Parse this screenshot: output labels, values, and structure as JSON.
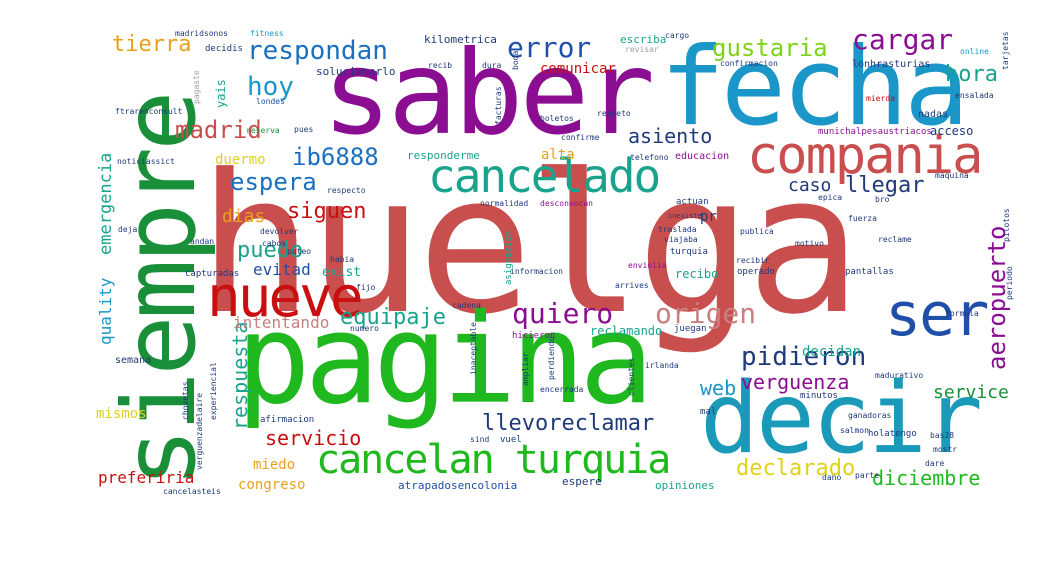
{
  "cloud": {
    "words": {
      "huelga": "huelga",
      "saber": "saber",
      "fecha": "fecha",
      "pagina": "pagina",
      "decir": "decir",
      "siempre": "siempre",
      "compania": "compania",
      "cancelado": "cancelado",
      "nueve": "nueve",
      "ser": "ser",
      "cancelan_turquia": "cancelan turquia",
      "respondan": "respondan",
      "error": "error",
      "cargar": "cargar",
      "gustaria": "gustaria",
      "hora": "hora",
      "tierra": "tierra",
      "hoy": "hoy",
      "madrid": "madrid",
      "espera": "espera",
      "ib6888": "ib6888",
      "asiento": "asiento",
      "siguen": "siguen",
      "puedo": "puedo",
      "dias": "dias",
      "caso": "caso",
      "llegar": "llegar",
      "aeropuerto": "aeropuerto",
      "quiero": "quiero",
      "origen": "origen",
      "equipaje": "equipaje",
      "pidieron": "pidieron",
      "verguenza": "verguenza",
      "web": "web",
      "decidan": "decidan",
      "service": "service",
      "llevoreclamar": "llevoreclamar",
      "servicio": "servicio",
      "declarado": "declarado",
      "diciembre": "diciembre",
      "respuesta": "respuesta",
      "emergencia": "emergencia",
      "quality": "quality",
      "intentando": "intentando",
      "evitad": "evitad",
      "miedo": "miedo",
      "preferiria": "preferiria",
      "congreso": "congreso",
      "mismos": "mismos",
      "comunicar": "comunicar",
      "alta": "alta",
      "duermo": "duermo",
      "exist": "exist",
      "recibo": "recibo",
      "reclamando": "reclamando",
      "solucionarlo": "solucionarlo",
      "kilometrica": "kilometrica",
      "escriba": "escriba",
      "yais": "yais",
      "atrapadosencolonia": "atrapadosencolonia",
      "opiniones": "opiniones",
      "espere": "espere",
      "acceso": "acceso",
      "responderme": "responderme",
      "educacion": "educacion",
      "lonhrasturias": "lonhrasturias",
      "munichalpesaustriacos": "munichalpesaustriacos",
      "madridsonos": "madridsonos",
      "fitness": "fitness",
      "decidis": "decidis",
      "londes": "londes",
      "pagaste": "pagaste",
      "reserva": "reserva",
      "semana": "semana",
      "capturadas": "capturadas",
      "andan": "andan",
      "devolver": "devolver",
      "hicieron": "hicieron",
      "juegan": "juegan",
      "turquia": "turquia",
      "operado": "operado",
      "pantallas": "pantallas",
      "recibir": "recibir",
      "publica": "publica",
      "fuerza": "fuerza",
      "actuan": "actuan",
      "pr": "pr",
      "inexiste": "inexiste",
      "traslada": "traslada",
      "nadas": "nadas",
      "online": "online",
      "tarjetas": "tarjetas",
      "ensalada": "ensalada",
      "mierda": "mierda",
      "respeto": "respeto",
      "boletos": "boletos",
      "facturas": "facturas",
      "informacion": "informacion",
      "asignacion": "asignacion",
      "afirmacion": "afirmacion",
      "encerrada": "encerrada",
      "irlanda": "irlanda",
      "ampliar": "ampliar",
      "minutos": "minutos",
      "salmon": "salmon",
      "holatengo": "holatengo",
      "bas28": "bas28",
      "ganadoras": "ganadoras",
      "madurativo": "madurativo",
      "vuel": "vuel",
      "sind": "sind",
      "dare": "dare",
      "mostr": "mostr",
      "parte": "parte",
      "dano": "dano",
      "normalidad": "normalidad",
      "desconvocan": "desconvocan",
      "respecto": "respecto",
      "telefono": "telefono",
      "noticiassict": "noticiassict",
      "cancelasteis": "cancelasteis",
      "verguenzadelaire": "verguenzadelaire",
      "chovetas": "chovetas",
      "confirmacion": "confirmacion",
      "revisar": "revisar",
      "cargo": "cargo",
      "dura": "dura",
      "recib": "recib",
      "boda": "boda",
      "pues": "pues",
      "confirme": "confirme",
      "maquina": "maquina",
      "viajaba": "viajaba",
      "motivo": "motivo",
      "reclame": "reclame",
      "pilotos": "pilotos",
      "periodo": "periodo",
      "formula": "formula",
      "arrives": "arrives",
      "cabos": "cabos",
      "habia": "habia",
      "deja": "deja",
      "puteo": "puteo",
      "fijo": "fijo",
      "numero": "numero",
      "cadena": "cadena",
      "epica": "epica",
      "bro": "bro",
      "enviolia": "enviolia",
      "inaceptable": "inaceptable",
      "experiencial": "experiencial",
      "perdiendo": "perdiendo",
      "clientes": "clientes",
      "mal": "mal",
      "ftrarenconsult": "ftrarenconsult"
    }
  },
  "colors": {
    "red": "#c94f4f",
    "green": "#1fb81f",
    "purple": "#8a0d92",
    "blue": "#1a96c8",
    "darkred": "#c90f0f",
    "teal": "#1aa38c",
    "orange": "#e8a21a",
    "navy": "#1f4fa8",
    "yellow": "#e0d21a",
    "gray": "#a0a0a0",
    "pink": "#c98080",
    "lime": "#7dd31a"
  }
}
